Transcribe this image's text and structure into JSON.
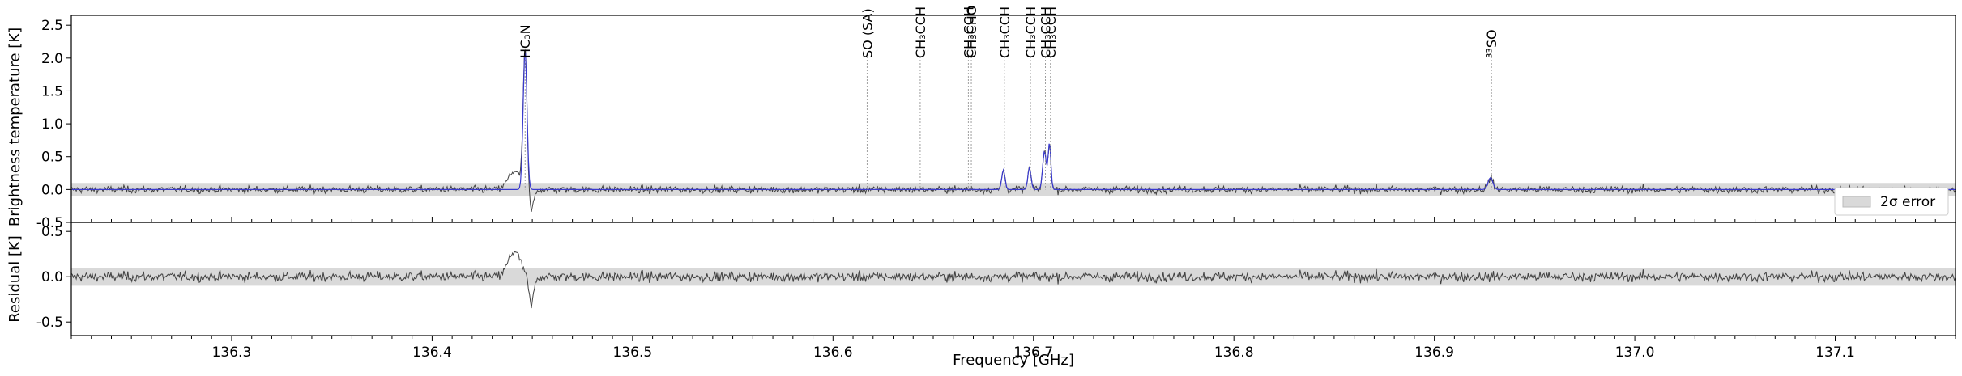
{
  "chart_data": [
    {
      "type": "line",
      "panel": "spectrum",
      "ylabel": "Brightness temperature [K]",
      "xlim": [
        136.22,
        137.16
      ],
      "ylim": [
        -0.5,
        2.65
      ],
      "yticks": [
        "-0.5",
        "0.0",
        "0.5",
        "1.0",
        "1.5",
        "2.0",
        "2.5"
      ],
      "grid": false,
      "error_band": 0.1,
      "legend": {
        "placement": "lower-right",
        "label": "2σ error"
      },
      "series": [
        {
          "color": "#404040",
          "kind": "observed",
          "noise_rms": 0.045
        },
        {
          "color": "#3a3acf",
          "kind": "model"
        }
      ],
      "features": [
        {
          "x": 136.4464,
          "amp": 2.12,
          "width": 0.00095
        },
        {
          "x": 136.441,
          "amp": 0.28,
          "width": 0.003
        },
        {
          "x": 136.4495,
          "amp": -0.32,
          "width": 0.0012
        },
        {
          "x": 136.685,
          "amp": 0.3,
          "width": 0.0008
        },
        {
          "x": 136.698,
          "amp": 0.33,
          "width": 0.0008
        },
        {
          "x": 136.7055,
          "amp": 0.58,
          "width": 0.0009
        },
        {
          "x": 136.708,
          "amp": 0.7,
          "width": 0.0007
        },
        {
          "x": 136.928,
          "amp": 0.18,
          "width": 0.0012
        }
      ],
      "lines": [
        {
          "x": 136.4464,
          "label": "HC₃N"
        },
        {
          "x": 136.617,
          "label": "SO (SA)"
        },
        {
          "x": 136.6435,
          "label": "CH₃CCH"
        },
        {
          "x": 136.6675,
          "label": "CH₃CCH"
        },
        {
          "x": 136.669,
          "label": "CH₃CHO"
        },
        {
          "x": 136.6855,
          "label": "CH₃CCH"
        },
        {
          "x": 136.6985,
          "label": "CH₃CCH"
        },
        {
          "x": 136.706,
          "label": "CH₃CCH"
        },
        {
          "x": 136.7085,
          "label": "CH₃CCH"
        },
        {
          "x": 136.9285,
          "label": "³³SO"
        }
      ]
    },
    {
      "type": "line",
      "panel": "residual",
      "xlabel": "Frequency [GHz]",
      "ylabel": "Residual [K]",
      "xlim": [
        136.22,
        137.16
      ],
      "ylim": [
        -0.65,
        0.6
      ],
      "yticks": [
        "-0.5",
        "0.0",
        "0.5"
      ],
      "xticks": [
        "136.3",
        "136.4",
        "136.5",
        "136.6",
        "136.7",
        "136.8",
        "136.9",
        "137.0",
        "137.1"
      ],
      "error_band": 0.1,
      "series": [
        {
          "color": "#404040",
          "kind": "residual"
        }
      ]
    }
  ]
}
